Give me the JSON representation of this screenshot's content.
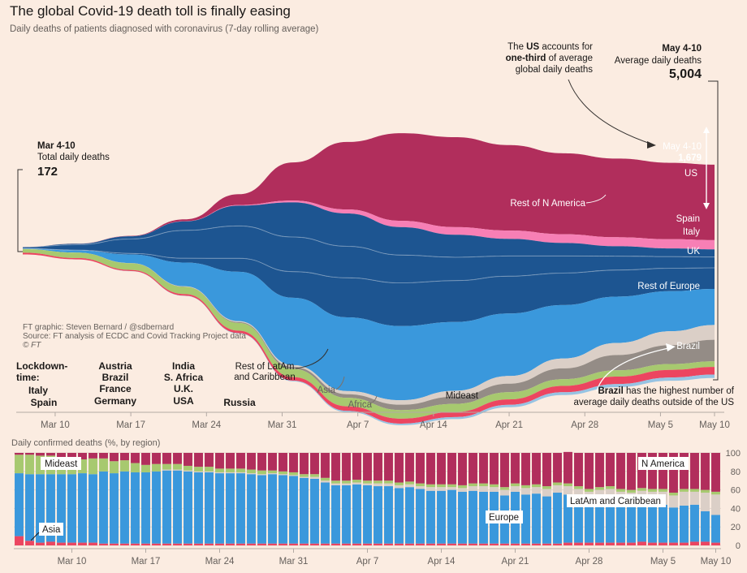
{
  "title": "The global Covid-19 death toll is finally easing",
  "subtitle": "Daily deaths of patients diagnosed with coronavirus (7-day rolling average)",
  "credits": [
    "FT graphic: Steven Bernard / @sdbernard",
    "Source: FT analysis of ECDC and Covid Tracking Project data",
    "© FT"
  ],
  "bottom_title": "Daily confirmed deaths (%, by region)",
  "annotations": {
    "start_period": "Mar 4-10",
    "start_label": "Total daily deaths",
    "start_value": "172",
    "end_period": "May 4-10",
    "end_label": "Average daily deaths",
    "end_value": "5,004",
    "us_note_1a": "The ",
    "us_note_1b": "US",
    "us_note_1c": " accounts for",
    "us_note_2a": "one-third",
    "us_note_2b": " of average",
    "us_note_3": "global daily deaths",
    "us_period": "May 4-10",
    "us_value": "1,679",
    "brazil_note_1a": "Brazil",
    "brazil_note_1b": " has the highest number of",
    "brazil_note_2": "average daily deaths outside of the US"
  },
  "lockdown": {
    "heading_1": "Lockdown-",
    "heading_2": "time:",
    "groups": [
      [
        "Italy",
        "Spain"
      ],
      [
        "Austria",
        "Brazil",
        "France",
        "Germany"
      ],
      [
        "India",
        "S. Africa",
        "U.K.",
        "USA"
      ],
      [
        "Russia"
      ]
    ]
  },
  "colors": {
    "US": "#b12e5c",
    "Rest of N America": "#f77fb5",
    "Spain": "#1d5591",
    "Italy": "#1d5591",
    "UK": "#1d5591",
    "Rest of Europe": "#3a98dc",
    "Brazil": "#948c86",
    "Rest of LatAm and Caribbean": "#dbcfc7",
    "Mideast": "#a7c96f",
    "Asia": "#ec4560",
    "Africa": "#97c3e3"
  },
  "chart_data": [
    {
      "type": "area",
      "title": "The global Covid-19 death toll is finally easing",
      "x_ticks": [
        "Mar 10",
        "Mar 17",
        "Mar 24",
        "Mar 31",
        "Apr 7",
        "Apr 14",
        "Apr 21",
        "Apr 28",
        "May 5",
        "May 10"
      ],
      "x_start": "Mar 7",
      "x_end": "May 10",
      "series_order_top_to_bottom": [
        "US",
        "Rest of N America",
        "Spain",
        "Italy",
        "UK",
        "Rest of Europe",
        "Rest of LatAm and Caribbean",
        "Brazil",
        "Mideast",
        "Asia",
        "Africa"
      ],
      "dates": [
        "Mar 7",
        "Mar 12",
        "Mar 17",
        "Mar 22",
        "Mar 27",
        "Apr 1",
        "Apr 6",
        "Apr 11",
        "Apr 16",
        "Apr 21",
        "Apr 26",
        "May 1",
        "May 6",
        "May 10"
      ],
      "series": [
        {
          "name": "US",
          "values": [
            1,
            2,
            8,
            40,
            240,
            850,
            1500,
            1950,
            2000,
            1900,
            1800,
            1750,
            1700,
            1679
          ]
        },
        {
          "name": "Rest of N America",
          "values": [
            0,
            1,
            2,
            5,
            15,
            40,
            90,
            140,
            170,
            185,
            195,
            200,
            205,
            205
          ]
        },
        {
          "name": "Spain",
          "values": [
            3,
            20,
            60,
            200,
            450,
            770,
            730,
            620,
            500,
            380,
            290,
            220,
            180,
            170
          ]
        },
        {
          "name": "Italy",
          "values": [
            30,
            120,
            320,
            620,
            720,
            770,
            700,
            620,
            520,
            450,
            380,
            310,
            260,
            240
          ]
        },
        {
          "name": "UK",
          "values": [
            1,
            5,
            25,
            95,
            300,
            580,
            880,
            960,
            920,
            830,
            710,
            590,
            510,
            470
          ]
        },
        {
          "name": "Rest of Europe",
          "values": [
            12,
            50,
            190,
            530,
            1100,
            1500,
            1640,
            1650,
            1530,
            1390,
            1190,
            1030,
            890,
            800
          ]
        },
        {
          "name": "Rest of LatAm and Caribbean",
          "values": [
            0,
            1,
            3,
            8,
            20,
            40,
            70,
            100,
            130,
            170,
            220,
            270,
            310,
            330
          ]
        },
        {
          "name": "Brazil",
          "values": [
            0,
            0,
            1,
            5,
            20,
            45,
            80,
            120,
            160,
            190,
            240,
            340,
            420,
            480
          ]
        },
        {
          "name": "Mideast",
          "values": [
            80,
            120,
            150,
            160,
            170,
            180,
            190,
            190,
            180,
            160,
            150,
            140,
            130,
            125
          ]
        },
        {
          "name": "Asia",
          "values": [
            40,
            30,
            25,
            35,
            55,
            80,
            100,
            110,
            115,
            120,
            140,
            165,
            170,
            170
          ]
        },
        {
          "name": "Africa",
          "values": [
            0,
            1,
            2,
            5,
            10,
            15,
            25,
            35,
            45,
            55,
            62,
            68,
            72,
            75
          ]
        }
      ],
      "xlabel": "",
      "ylabel": ""
    },
    {
      "type": "bar",
      "stacked": true,
      "title": "Daily confirmed deaths (%, by region)",
      "yticks": [
        0,
        20,
        40,
        60,
        80,
        100
      ],
      "ylim": [
        0,
        100
      ],
      "x_ticks": [
        "Mar 10",
        "Mar 17",
        "Mar 24",
        "Mar 31",
        "Apr 7",
        "Apr 14",
        "Apr 21",
        "Apr 28",
        "May 5",
        "May 10"
      ],
      "series_order_bottom_to_top": [
        "Asia",
        "Europe",
        "LatAm and Caribbean",
        "Mideast",
        "N America"
      ],
      "series_labels": [
        "Asia",
        "Europe",
        "LatAm and Caribbean",
        "Mideast",
        "N America"
      ],
      "series_colors": {
        "Asia": "#ec4560",
        "Europe": "#3a98dc",
        "LatAm and Caribbean": "#dbcfc7",
        "Mideast": "#a7c96f",
        "N America": "#b12e5c"
      },
      "dates": [
        "Mar 5",
        "Mar 6",
        "Mar 7",
        "Mar 8",
        "Mar 9",
        "Mar 10",
        "Mar 11",
        "Mar 12",
        "Mar 13",
        "Mar 14",
        "Mar 15",
        "Mar 16",
        "Mar 17",
        "Mar 18",
        "Mar 19",
        "Mar 20",
        "Mar 21",
        "Mar 22",
        "Mar 23",
        "Mar 24",
        "Mar 25",
        "Mar 26",
        "Mar 27",
        "Mar 28",
        "Mar 29",
        "Mar 30",
        "Mar 31",
        "Apr 1",
        "Apr 2",
        "Apr 3",
        "Apr 4",
        "Apr 5",
        "Apr 6",
        "Apr 7",
        "Apr 8",
        "Apr 9",
        "Apr 10",
        "Apr 11",
        "Apr 12",
        "Apr 13",
        "Apr 14",
        "Apr 15",
        "Apr 16",
        "Apr 17",
        "Apr 18",
        "Apr 19",
        "Apr 20",
        "Apr 21",
        "Apr 22",
        "Apr 23",
        "Apr 24",
        "Apr 25",
        "Apr 26",
        "Apr 27",
        "Apr 28",
        "Apr 29",
        "Apr 30",
        "May 1",
        "May 2",
        "May 3",
        "May 4",
        "May 5",
        "May 6",
        "May 7",
        "May 8",
        "May 9",
        "May 10"
      ],
      "series": [
        {
          "name": "Asia",
          "values": [
            10,
            5,
            3,
            4,
            3,
            3,
            3,
            3,
            2,
            2,
            2,
            2,
            2,
            2,
            2,
            2,
            2,
            2,
            2,
            2,
            2,
            2,
            2,
            2,
            2,
            2,
            2,
            2,
            2,
            2,
            2,
            2,
            2,
            2,
            2,
            2,
            2,
            2,
            2,
            2,
            2,
            2,
            2,
            2,
            2,
            2,
            2,
            2,
            2,
            2,
            2,
            2,
            3,
            3,
            3,
            3,
            3,
            3,
            3,
            4,
            3,
            3,
            3,
            3,
            4,
            4,
            3
          ]
        },
        {
          "name": "Europe",
          "values": [
            68,
            72,
            74,
            73,
            74,
            74,
            75,
            74,
            78,
            76,
            78,
            77,
            77,
            78,
            79,
            79,
            78,
            77,
            77,
            76,
            76,
            76,
            75,
            74,
            75,
            74,
            73,
            71,
            70,
            66,
            63,
            63,
            64,
            63,
            62,
            62,
            60,
            61,
            59,
            57,
            57,
            58,
            56,
            57,
            56,
            56,
            52,
            56,
            53,
            54,
            51,
            55,
            52,
            48,
            47,
            48,
            47,
            44,
            42,
            45,
            41,
            41,
            38,
            40,
            40,
            33,
            30
          ]
        },
        {
          "name": "LatAm and Caribbean",
          "values": [
            0,
            0,
            0,
            0,
            0,
            0,
            0,
            0,
            0,
            0,
            0,
            0,
            0,
            0,
            1,
            1,
            1,
            1,
            1,
            1,
            1,
            1,
            1,
            1,
            1,
            1,
            1,
            1,
            2,
            2,
            2,
            2,
            2,
            2,
            3,
            3,
            3,
            3,
            3,
            4,
            4,
            3,
            4,
            5,
            6,
            5,
            6,
            6,
            7,
            7,
            8,
            8,
            9,
            10,
            8,
            9,
            11,
            11,
            12,
            10,
            14,
            14,
            13,
            15,
            14,
            20,
            22
          ]
        },
        {
          "name": "Mideast",
          "values": [
            20,
            21,
            20,
            20,
            18,
            17,
            15,
            17,
            14,
            13,
            12,
            10,
            8,
            8,
            6,
            6,
            5,
            5,
            5,
            4,
            4,
            4,
            4,
            4,
            3,
            3,
            3,
            3,
            3,
            3,
            3,
            3,
            3,
            3,
            3,
            3,
            3,
            3,
            3,
            3,
            3,
            3,
            3,
            3,
            3,
            3,
            3,
            3,
            3,
            3,
            3,
            3,
            3,
            3,
            3,
            3,
            3,
            3,
            3,
            3,
            3,
            3,
            3,
            3,
            3,
            3,
            3
          ]
        },
        {
          "name": "N America",
          "values": [
            2,
            2,
            3,
            3,
            5,
            6,
            7,
            6,
            6,
            9,
            8,
            11,
            13,
            12,
            12,
            12,
            14,
            15,
            15,
            17,
            17,
            17,
            18,
            19,
            19,
            20,
            21,
            23,
            23,
            27,
            30,
            30,
            29,
            30,
            30,
            30,
            32,
            31,
            33,
            34,
            34,
            34,
            35,
            33,
            33,
            34,
            37,
            33,
            35,
            34,
            36,
            32,
            34,
            36,
            39,
            37,
            36,
            39,
            40,
            38,
            39,
            39,
            43,
            39,
            39,
            40,
            42
          ]
        }
      ]
    }
  ]
}
